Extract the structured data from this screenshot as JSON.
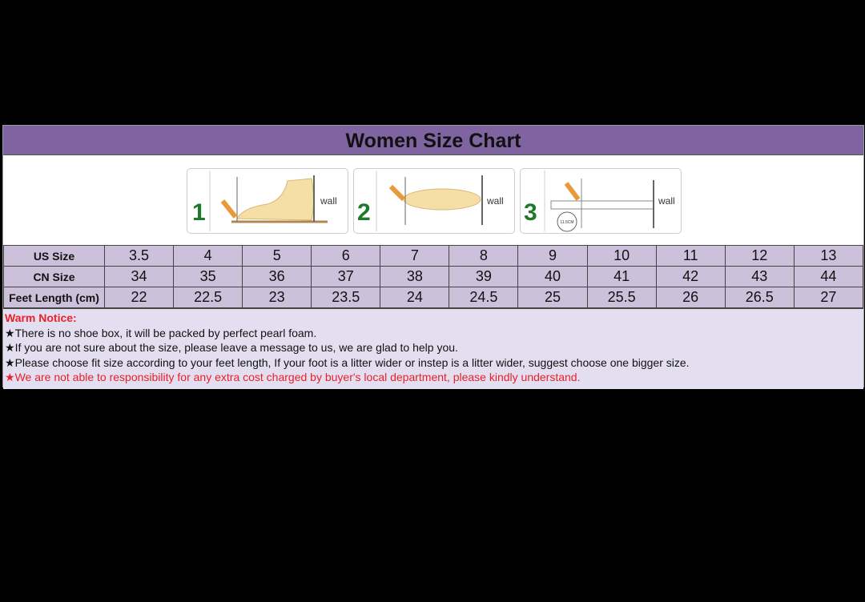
{
  "title": "Women Size Chart",
  "steps": [
    {
      "number": "1",
      "wall": "wall"
    },
    {
      "number": "2",
      "wall": "wall"
    },
    {
      "number": "3",
      "wall": "wall",
      "measure": "11.5CM"
    }
  ],
  "table": {
    "rows": [
      {
        "label": "US Size",
        "values": [
          "3.5",
          "4",
          "5",
          "6",
          "7",
          "8",
          "9",
          "10",
          "11",
          "12",
          "13"
        ]
      },
      {
        "label": "CN Size",
        "values": [
          "34",
          "35",
          "36",
          "37",
          "38",
          "39",
          "40",
          "41",
          "42",
          "43",
          "44"
        ]
      },
      {
        "label": "Feet Length (cm)",
        "values": [
          "22",
          "22.5",
          "23",
          "23.5",
          "24",
          "24.5",
          "25",
          "25.5",
          "26",
          "26.5",
          "27"
        ]
      }
    ]
  },
  "notice": {
    "title": "Warm Notice:",
    "items": [
      {
        "text": "There is no shoe box, it will be packed by perfect pearl foam.",
        "color": "#111111"
      },
      {
        "text": "If you are not sure about the size, please leave a message to us, we are glad to help you.",
        "color": "#111111"
      },
      {
        "text": "Please choose fit size according to your feet length, If your foot is a litter wider or instep is a litter wider, suggest choose one bigger size.",
        "color": "#111111"
      },
      {
        "text": "We are not able to responsibility for any extra cost charged by buyer's local department, please kindly understand.",
        "color": "#e8202a"
      }
    ]
  },
  "colors": {
    "header": "#8064a2",
    "cell": "#ccc0da",
    "notice_bg": "#e4dff0",
    "accent_red": "#e8202a",
    "step_green": "#1e7a2a"
  }
}
